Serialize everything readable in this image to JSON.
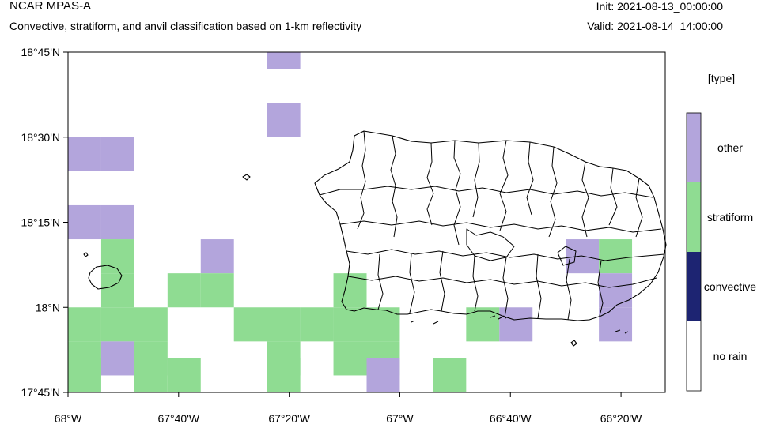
{
  "header": {
    "title": "NCAR MPAS-A",
    "subtitle": "Convective, stratiform, and anvil classification based on 1-km reflectivity",
    "init": "Init: 2021-08-13_00:00:00",
    "valid": "Valid: 2021-08-14_14:00:00"
  },
  "map": {
    "lon_range": [
      -68.0,
      -66.2
    ],
    "lat_range": [
      17.75,
      18.75
    ],
    "cell_size_deg": 0.1,
    "y_ticks": [
      {
        "value": 18.75,
        "label": "18°45'N"
      },
      {
        "value": 18.5,
        "label": "18°30'N"
      },
      {
        "value": 18.25,
        "label": "18°15'N"
      },
      {
        "value": 18.0,
        "label": "18°N"
      },
      {
        "value": 17.75,
        "label": "17°45'N"
      }
    ],
    "x_ticks": [
      {
        "value": -68.0,
        "label": "68°W"
      },
      {
        "value": -67.6667,
        "label": "67°40'W"
      },
      {
        "value": -67.3333,
        "label": "67°20'W"
      },
      {
        "value": -67.0,
        "label": "67°W"
      },
      {
        "value": -66.6667,
        "label": "66°40'W"
      },
      {
        "value": -66.3333,
        "label": "66°20'W"
      }
    ],
    "cells": [
      {
        "lon": -67.4,
        "lat": 18.7,
        "type": "other"
      },
      {
        "lon": -67.4,
        "lat": 18.5,
        "type": "other"
      },
      {
        "lon": -68.0,
        "lat": 18.4,
        "type": "other"
      },
      {
        "lon": -67.9,
        "lat": 18.4,
        "type": "other"
      },
      {
        "lon": -68.0,
        "lat": 18.2,
        "type": "other"
      },
      {
        "lon": -67.9,
        "lat": 18.2,
        "type": "other"
      },
      {
        "lon": -67.9,
        "lat": 18.1,
        "type": "stratiform"
      },
      {
        "lon": -67.6,
        "lat": 18.1,
        "type": "other"
      },
      {
        "lon": -67.9,
        "lat": 18.0,
        "type": "stratiform"
      },
      {
        "lon": -67.7,
        "lat": 18.0,
        "type": "stratiform"
      },
      {
        "lon": -67.6,
        "lat": 18.0,
        "type": "stratiform"
      },
      {
        "lon": -67.2,
        "lat": 18.0,
        "type": "stratiform"
      },
      {
        "lon": -68.0,
        "lat": 17.9,
        "type": "stratiform"
      },
      {
        "lon": -67.9,
        "lat": 17.9,
        "type": "stratiform"
      },
      {
        "lon": -67.8,
        "lat": 17.9,
        "type": "stratiform"
      },
      {
        "lon": -67.5,
        "lat": 17.9,
        "type": "stratiform"
      },
      {
        "lon": -67.4,
        "lat": 17.9,
        "type": "stratiform"
      },
      {
        "lon": -67.3,
        "lat": 17.9,
        "type": "stratiform"
      },
      {
        "lon": -67.2,
        "lat": 17.9,
        "type": "stratiform"
      },
      {
        "lon": -67.1,
        "lat": 17.9,
        "type": "stratiform"
      },
      {
        "lon": -66.8,
        "lat": 17.9,
        "type": "stratiform"
      },
      {
        "lon": -66.7,
        "lat": 17.9,
        "type": "other"
      },
      {
        "lon": -68.0,
        "lat": 17.8,
        "type": "stratiform"
      },
      {
        "lon": -67.9,
        "lat": 17.8,
        "type": "other"
      },
      {
        "lon": -67.8,
        "lat": 17.8,
        "type": "stratiform"
      },
      {
        "lon": -67.4,
        "lat": 17.8,
        "type": "stratiform"
      },
      {
        "lon": -67.2,
        "lat": 17.8,
        "type": "stratiform"
      },
      {
        "lon": -67.1,
        "lat": 17.8,
        "type": "stratiform"
      },
      {
        "lon": -68.0,
        "lat": 17.75,
        "type": "stratiform"
      },
      {
        "lon": -67.8,
        "lat": 17.75,
        "type": "stratiform"
      },
      {
        "lon": -67.7,
        "lat": 17.75,
        "type": "stratiform"
      },
      {
        "lon": -67.4,
        "lat": 17.75,
        "type": "stratiform"
      },
      {
        "lon": -67.1,
        "lat": 17.75,
        "type": "other"
      },
      {
        "lon": -66.9,
        "lat": 17.75,
        "type": "stratiform"
      },
      {
        "lon": -66.5,
        "lat": 18.1,
        "type": "other"
      },
      {
        "lon": -66.4,
        "lat": 18.1,
        "type": "stratiform"
      },
      {
        "lon": -66.4,
        "lat": 18.0,
        "type": "other"
      },
      {
        "lon": -66.4,
        "lat": 17.9,
        "type": "other"
      }
    ]
  },
  "legend": {
    "title": "[type]",
    "items": [
      {
        "label": "other",
        "color": "#b3a5dc"
      },
      {
        "label": "stratiform",
        "color": "#8fdc92"
      },
      {
        "label": "convective",
        "color": "#1d2472"
      },
      {
        "label": "no rain",
        "color": "#ffffff"
      }
    ]
  }
}
